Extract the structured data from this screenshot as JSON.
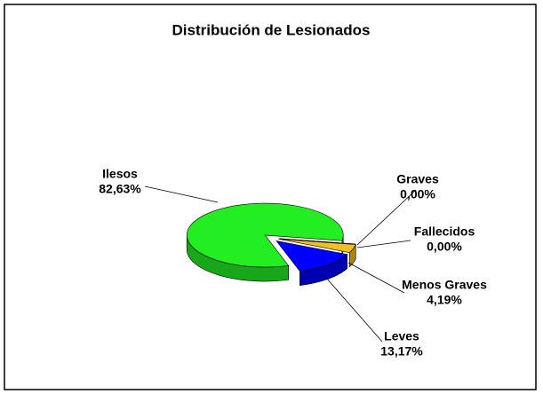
{
  "chart_data": {
    "type": "pie",
    "title": "Distribución de Lesionados",
    "categories": [
      "Ilesos",
      "Graves",
      "Fallecidos",
      "Menos Graves",
      "Leves"
    ],
    "values": [
      82.63,
      0.0,
      0.0,
      4.19,
      13.17
    ],
    "value_labels": [
      "82,63%",
      "0,00%",
      "0,00%",
      "4,19%",
      "13,17%"
    ],
    "colors": [
      "#22ee22",
      "#e8c020",
      "#cc3333",
      "#f0c020",
      "#0000ff"
    ]
  }
}
